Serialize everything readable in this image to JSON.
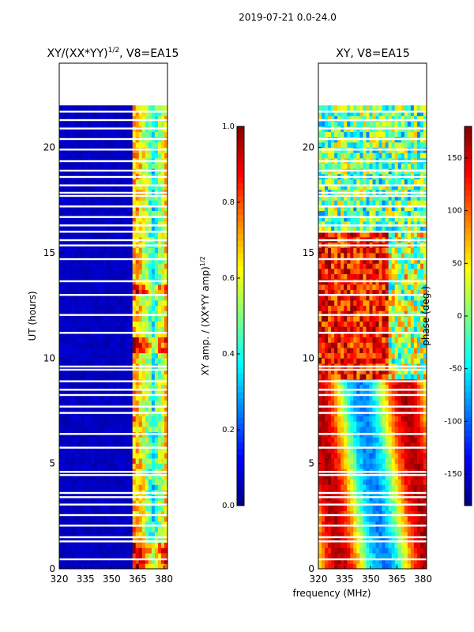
{
  "chart_data": {
    "type": "heatmap",
    "suptitle": "2019-07-21 0.0-24.0",
    "shared_xlabel": "frequency (MHz)",
    "panels": [
      {
        "title_prefix": "XY/(XX*YY)",
        "title_sup": "1/2",
        "title_suffix": ", V8=EA15",
        "ylabel": "UT (hours)",
        "xlim": [
          320,
          382
        ],
        "ylim": [
          0,
          24
        ],
        "xticks": [
          "320",
          "335",
          "350",
          "365",
          "380"
        ],
        "xtick_values": [
          320,
          335,
          350,
          365,
          380
        ],
        "yticks": [
          "0",
          "5",
          "10",
          "15",
          "20"
        ],
        "ytick_values": [
          0,
          5,
          10,
          15,
          20
        ],
        "data_extent_hours": [
          0,
          22
        ],
        "colorbar": {
          "label_main": "XY amp. / (XX*YY amp)",
          "label_sup": "1/2",
          "range": [
            0.0,
            1.0
          ],
          "ticks": [
            "0.0",
            "0.2",
            "0.4",
            "0.6",
            "0.8",
            "1.0"
          ],
          "tick_values": [
            0.0,
            0.2,
            0.4,
            0.6,
            0.8,
            1.0
          ],
          "colormap": "jet"
        }
      },
      {
        "title": "XY, V8=EA15",
        "xlim": [
          320,
          382
        ],
        "ylim": [
          0,
          24
        ],
        "xticks": [
          "320",
          "335",
          "350",
          "365",
          "380"
        ],
        "xtick_values": [
          320,
          335,
          350,
          365,
          380
        ],
        "yticks": [
          "0",
          "5",
          "10",
          "15",
          "20"
        ],
        "ytick_values": [
          0,
          5,
          10,
          15,
          20
        ],
        "data_extent_hours": [
          0,
          22
        ],
        "colorbar": {
          "label": "phase (deg.)",
          "range": [
            -180,
            180
          ],
          "ticks": [
            "-150",
            "-100",
            "-50",
            "0",
            "50",
            "100",
            "150"
          ],
          "tick_values": [
            -150,
            -100,
            -50,
            0,
            50,
            100,
            150
          ],
          "colormap": "jet"
        }
      }
    ],
    "flagged_rows_hours": [
      0.45,
      1.3,
      1.5,
      2.05,
      2.55,
      3.05,
      3.4,
      3.6,
      4.45,
      4.6,
      5.75,
      6.4,
      7.4,
      7.7,
      8.25,
      8.5,
      8.9,
      9.45,
      9.6,
      11.2,
      12.05,
      13.0,
      13.65,
      14.7,
      15.35,
      15.6,
      16.0,
      16.3,
      16.7,
      17.2,
      17.7,
      17.85,
      18.2,
      18.6,
      18.9,
      19.35,
      19.9,
      20.4,
      20.9,
      21.3,
      21.7
    ]
  }
}
